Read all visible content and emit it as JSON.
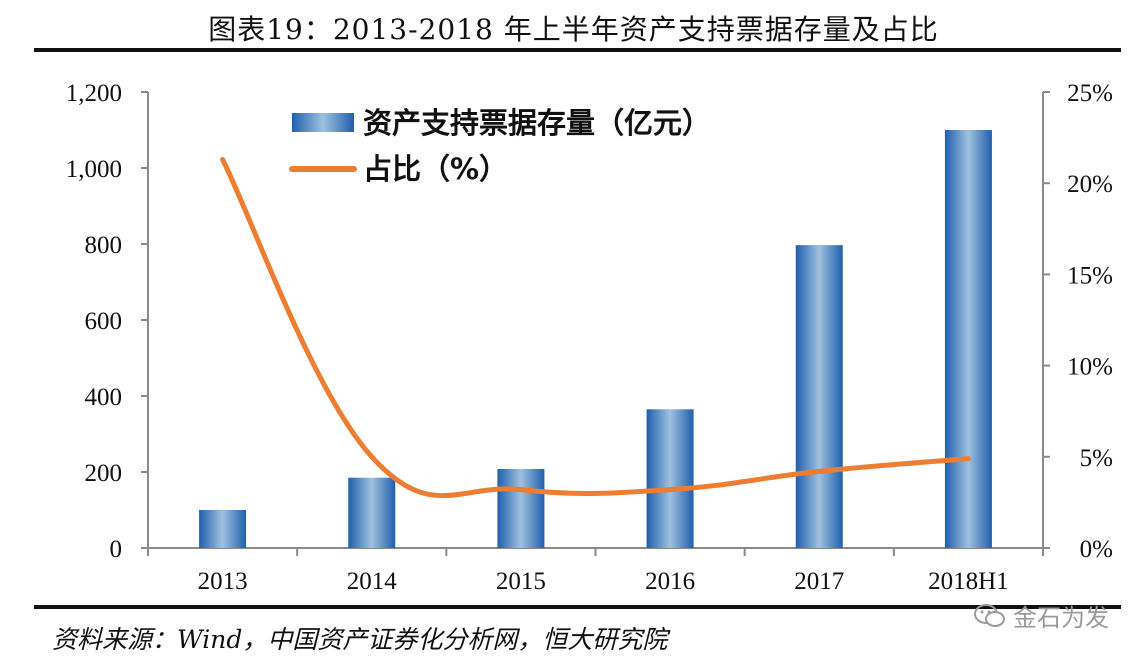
{
  "title": "图表19：2013-2018 年上半年资产支持票据存量及占比",
  "source": "资料来源：Wind，中国资产证券化分析网，恒大研究院",
  "watermark": "金石为发",
  "chart_data": {
    "type": "bar",
    "categories": [
      "2013",
      "2014",
      "2015",
      "2016",
      "2017",
      "2018H1"
    ],
    "series": [
      {
        "name": "资产支持票据存量（亿元）",
        "type": "bar",
        "axis": "left",
        "values": [
          100,
          185,
          208,
          365,
          797,
          1100
        ],
        "color": "#3a7cc4"
      },
      {
        "name": "占比（%）",
        "type": "line",
        "axis": "right",
        "values": [
          21.3,
          5.0,
          3.2,
          3.2,
          4.2,
          4.9
        ],
        "color": "#ed7d31"
      }
    ],
    "y_left": {
      "min": 0,
      "max": 1200,
      "ticks": [
        "0",
        "200",
        "400",
        "600",
        "800",
        "1,000",
        "1,200"
      ]
    },
    "y_right": {
      "min": 0,
      "max": 25,
      "ticks": [
        "0%",
        "5%",
        "10%",
        "15%",
        "20%",
        "25%"
      ]
    },
    "legend_position": "top-left",
    "grid": false
  }
}
